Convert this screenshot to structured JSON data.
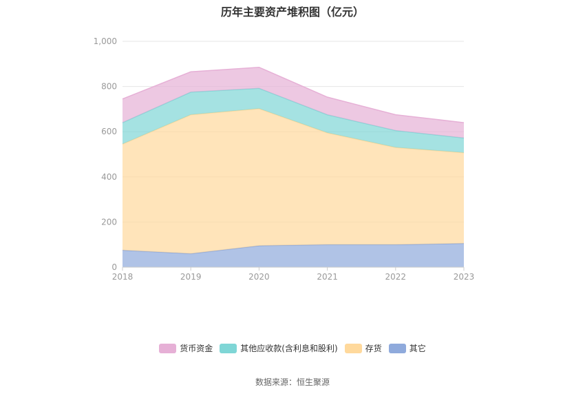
{
  "title": "历年主要资产堆积图（亿元）",
  "source": "数据来源：恒生聚源",
  "chart_data": {
    "type": "area",
    "stacked": true,
    "title": "历年主要资产堆积图（亿元）",
    "categories": [
      "2018",
      "2019",
      "2020",
      "2021",
      "2022",
      "2023"
    ],
    "ylim": [
      0,
      1000
    ],
    "yticks": [
      "0",
      "200",
      "400",
      "600",
      "800",
      "1,000"
    ],
    "grid": true,
    "legend_position": "bottom",
    "series": [
      {
        "name": "其它",
        "color": "#8faadc",
        "values": [
          75,
          60,
          95,
          100,
          100,
          105
        ]
      },
      {
        "name": "存货",
        "color": "#ffd99c",
        "values": [
          470,
          615,
          607,
          495,
          430,
          402
        ]
      },
      {
        "name": "其他应收款(含利息和股利)",
        "color": "#7fd6d6",
        "values": [
          95,
          100,
          90,
          80,
          75,
          65
        ]
      },
      {
        "name": "货币资金",
        "color": "#e6b0d6",
        "values": [
          105,
          90,
          93,
          78,
          70,
          68
        ]
      }
    ]
  },
  "legend": [
    {
      "label": "货币资金",
      "color": "#e6b0d6"
    },
    {
      "label": "其他应收款(含利息和股利)",
      "color": "#7fd6d6"
    },
    {
      "label": "存货",
      "color": "#ffd99c"
    },
    {
      "label": "其它",
      "color": "#8faadc"
    }
  ]
}
